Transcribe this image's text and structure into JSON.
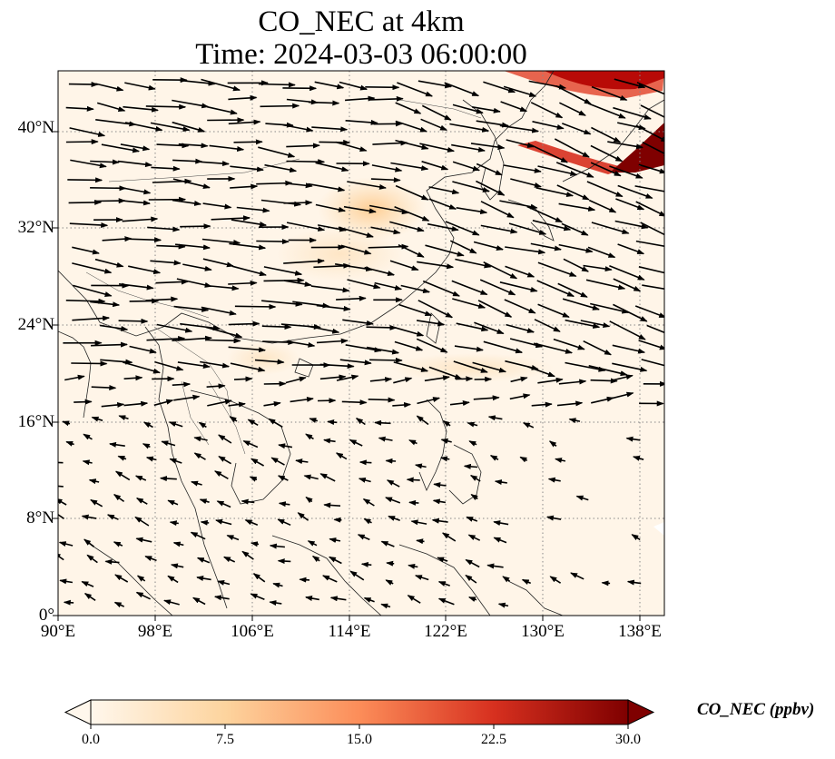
{
  "title": {
    "line1": "CO_NEC at 4km",
    "line2": "Time: 2024-03-03 06:00:00"
  },
  "map": {
    "projection": "PlateCarree",
    "lon_range": [
      90,
      140
    ],
    "lat_range": [
      0,
      45
    ],
    "gridlines": true,
    "gridline_style": "dotted",
    "lon_ticks": [
      "90°E",
      "98°E",
      "106°E",
      "114°E",
      "122°E",
      "130°E",
      "138°E"
    ],
    "lat_ticks": [
      "0°",
      "8°N",
      "16°N",
      "24°N",
      "32°N",
      "40°N"
    ],
    "coastlines": true,
    "borders": true,
    "field": "CO_NEC",
    "wind_vectors": true
  },
  "colorbar": {
    "label": "CO_NEC (ppbv)",
    "colormap": "OrRd",
    "range": [
      0,
      30
    ],
    "ticks": [
      "0.0",
      "7.5",
      "15.0",
      "22.5",
      "30.0"
    ],
    "extend": "both",
    "colors": [
      "#fff7ec",
      "#fdd49e",
      "#fc8d59",
      "#d7301f",
      "#7f0000"
    ]
  }
}
